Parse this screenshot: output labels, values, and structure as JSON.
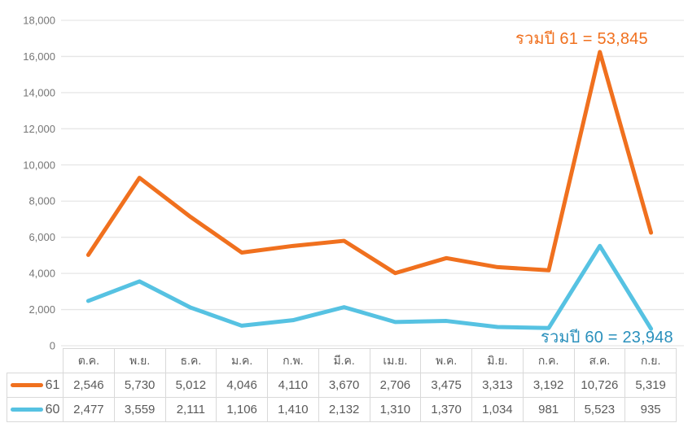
{
  "chart_data": {
    "type": "line",
    "title": "",
    "xlabel": "",
    "ylabel": "",
    "categories": [
      "ต.ค.",
      "พ.ย.",
      "ธ.ค.",
      "ม.ค.",
      "ก.พ.",
      "มี.ค.",
      "เม.ย.",
      "พ.ค.",
      "มิ.ย.",
      "ก.ค.",
      "ส.ค.",
      "ก.ย."
    ],
    "series": [
      {
        "name": "61",
        "color": "#F0701E",
        "values": [
          2546,
          5730,
          5012,
          4046,
          4110,
          3670,
          2706,
          3475,
          3313,
          3192,
          10726,
          5319
        ],
        "total": 53845
      },
      {
        "name": "60",
        "color": "#56C2E2",
        "values": [
          2477,
          3559,
          2111,
          1106,
          1410,
          2132,
          1310,
          1370,
          1034,
          981,
          5523,
          935
        ],
        "total": 23948
      }
    ],
    "stacked": true,
    "ylim": [
      0,
      18000
    ],
    "ytick_step": 2000,
    "grid": true,
    "legend_position": "table-left",
    "annotations": [
      {
        "text": "รวมปี 61 = 53,845",
        "color": "#F0701E"
      },
      {
        "text": "รวมปี 60 = 23,948",
        "color": "#2A90BC"
      }
    ]
  },
  "colors": {
    "grid": "#E6E6E6",
    "axis_label": "#767676",
    "table_border": "#D9D9D9",
    "table_text": "#5A5A5A",
    "background": "#FFFFFF"
  }
}
